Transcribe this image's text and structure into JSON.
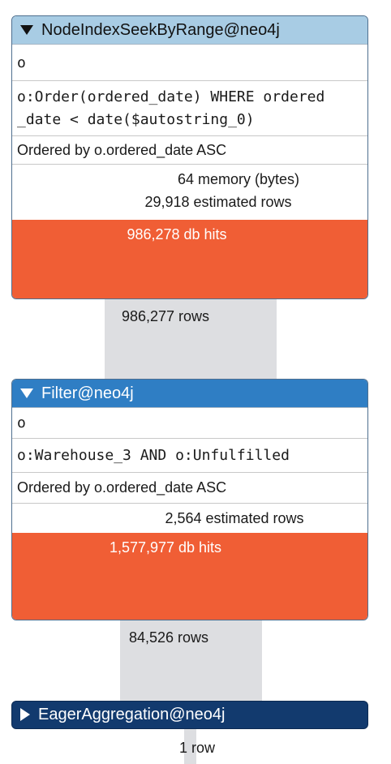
{
  "operators": [
    {
      "title": "NodeIndexSeekByRange@neo4j",
      "variable": "o",
      "details": "o:Order(ordered_date) WHERE ordered_date < date($autostring_0)",
      "details_line1": "o:Order(ordered_date) WHERE ordered",
      "details_line2": "_date < date($autostring_0)",
      "ordered": "Ordered by o.ordered_date ASC",
      "memory": "64 memory (bytes)",
      "estimated_rows": "29,918 estimated rows",
      "db_hits": "986,278 db hits",
      "output_rows": "986,277 rows",
      "header_color": "#a8cce4",
      "header_text_color": "#111111"
    },
    {
      "title": "Filter@neo4j",
      "variable": "o",
      "details": "o:Warehouse_3 AND o:Unfulfilled",
      "ordered": "Ordered by o.ordered_date ASC",
      "estimated_rows": "2,564 estimated rows",
      "db_hits": "1,577,977 db hits",
      "output_rows": "84,526 rows",
      "header_color": "#2f7ec4",
      "header_text_color": "#ffffff"
    },
    {
      "title": "EagerAggregation@neo4j",
      "output_rows": "1 row",
      "header_color": "#123a6e",
      "header_text_color": "#ffffff"
    }
  ],
  "colors": {
    "db_hits_bg": "#f05e35",
    "pipe": "#dddee1"
  }
}
